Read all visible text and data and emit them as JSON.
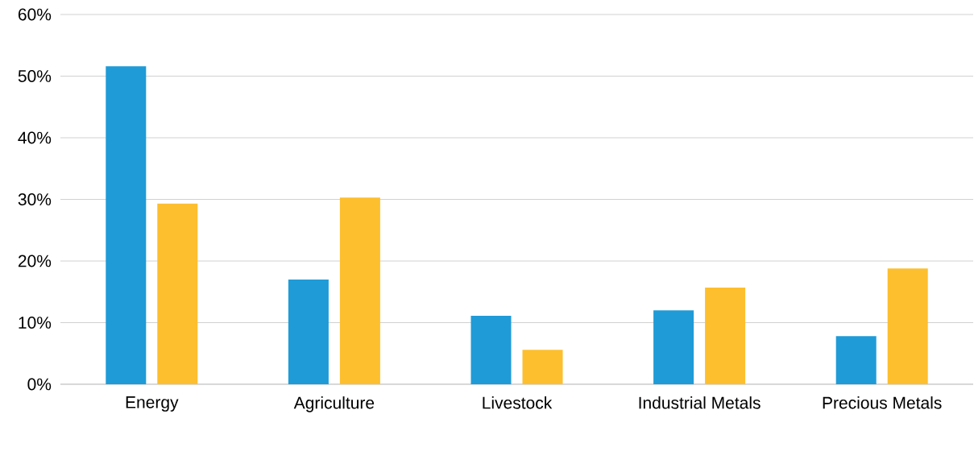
{
  "chart_data": {
    "type": "bar",
    "categories": [
      "Energy",
      "Agriculture",
      "Livestock",
      "Industrial Metals",
      "Precious Metals"
    ],
    "series": [
      {
        "color": "#1f9bd7",
        "values": [
          51.6,
          17.0,
          11.1,
          12.0,
          7.8
        ]
      },
      {
        "color": "#fdbf2d",
        "values": [
          29.3,
          30.3,
          5.6,
          15.7,
          18.8
        ]
      }
    ],
    "ylim": [
      0,
      60
    ],
    "yticks": [
      {
        "value": 0,
        "label": "0%"
      },
      {
        "value": 10,
        "label": "10%"
      },
      {
        "value": 20,
        "label": "20%"
      },
      {
        "value": 30,
        "label": "30%"
      },
      {
        "value": 40,
        "label": "40%"
      },
      {
        "value": 50,
        "label": "50%"
      },
      {
        "value": 60,
        "label": "60%"
      }
    ],
    "grid": "y"
  }
}
